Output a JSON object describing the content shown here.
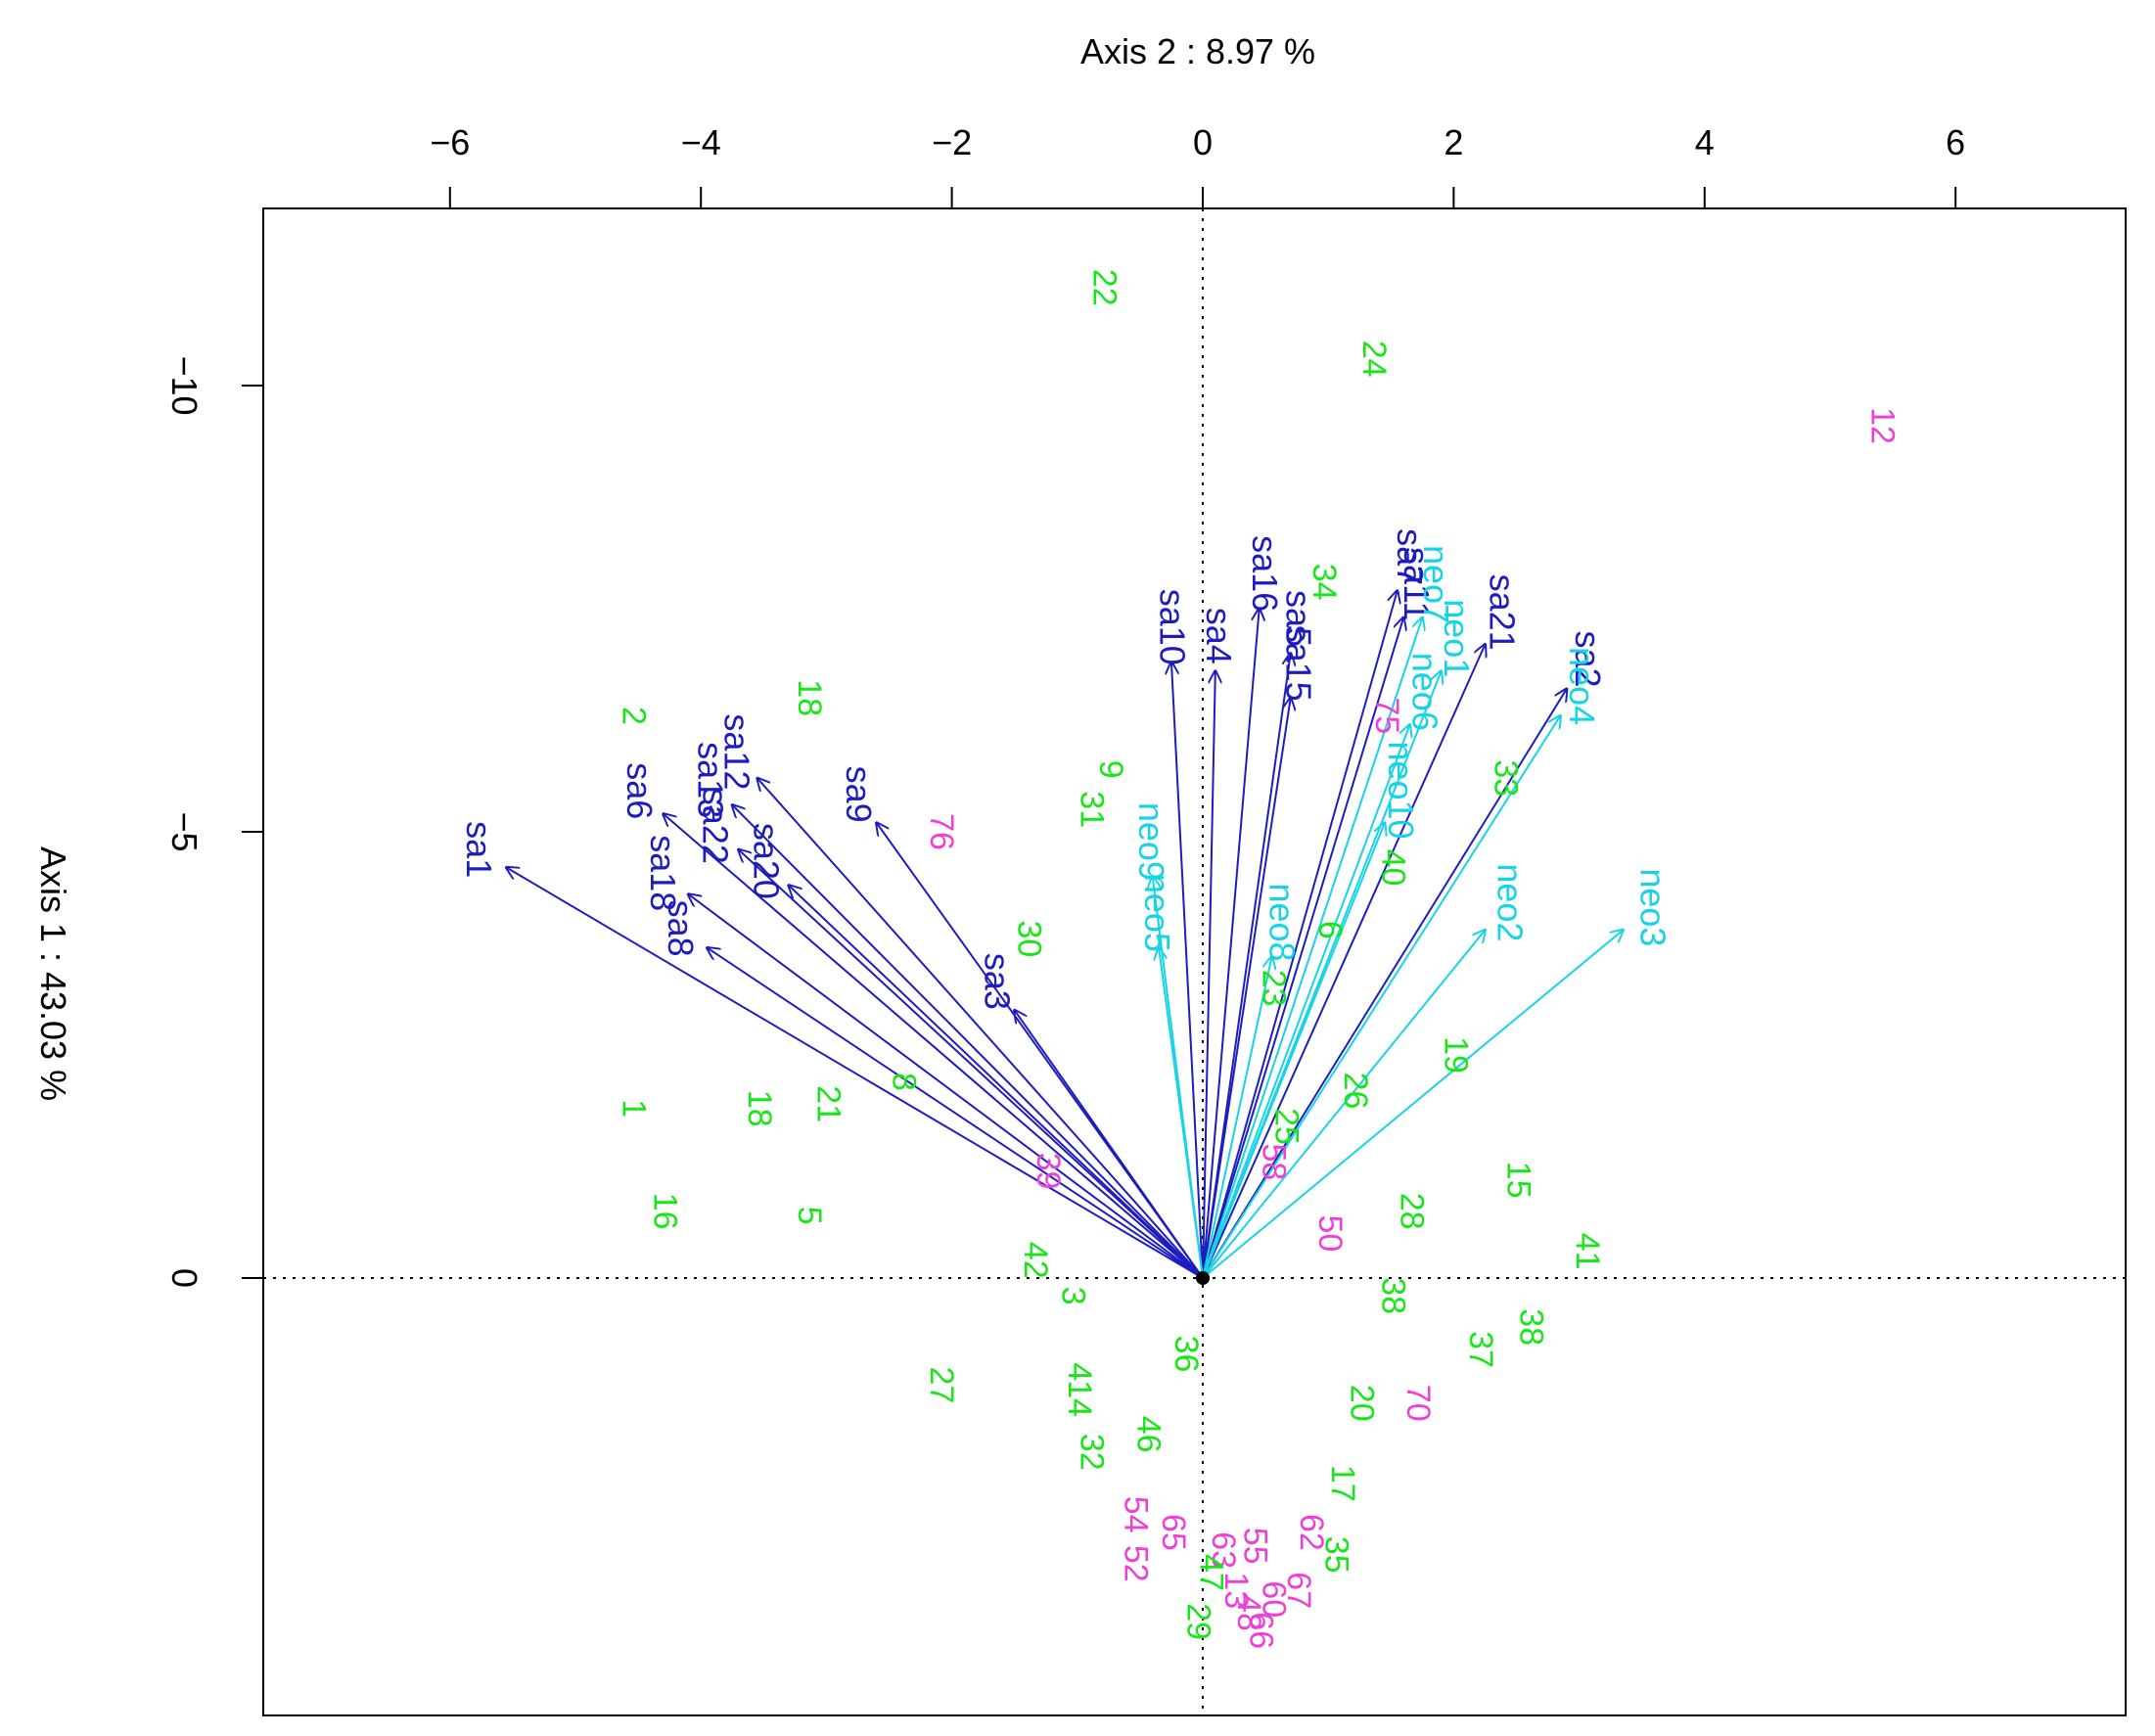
{
  "chart_data": {
    "type": "scatter",
    "title": "",
    "xlabel": "Axis 2 : 8.97 %",
    "ylabel": "Axis 1 : 43.03 %",
    "xlim": [
      -7.5,
      7.5
    ],
    "ylim": [
      -12,
      5
    ],
    "x_ticks": [
      {
        "value": -6,
        "label": "−6"
      },
      {
        "value": -4,
        "label": "−4"
      },
      {
        "value": -2,
        "label": "−2"
      },
      {
        "value": 0,
        "label": "0"
      },
      {
        "value": 2,
        "label": "2"
      },
      {
        "value": 4,
        "label": "4"
      },
      {
        "value": 6,
        "label": "6"
      }
    ],
    "y_ticks": [
      {
        "value": -10,
        "label": "−10"
      },
      {
        "value": -5,
        "label": "−5"
      },
      {
        "value": 0,
        "label": "0"
      }
    ],
    "colors": {
      "axis": "#000000",
      "sat_arrows": "#1d1dbf",
      "neo_arrows": "#16d3e6",
      "green_points": "#19e619",
      "magenta_points": "#ee3fd6"
    },
    "arrows": [
      {
        "label": "sa1",
        "group": "sat",
        "x": -5.55,
        "y": -4.6
      },
      {
        "label": "sa6",
        "group": "sat",
        "x": -4.3,
        "y": -5.2
      },
      {
        "label": "sa12",
        "group": "sat",
        "x": -3.55,
        "y": -5.6
      },
      {
        "label": "sa13",
        "group": "sat",
        "x": -3.75,
        "y": -5.3
      },
      {
        "label": "sa22",
        "group": "sat",
        "x": -3.7,
        "y": -4.8
      },
      {
        "label": "sa18",
        "group": "sat",
        "x": -4.1,
        "y": -4.3
      },
      {
        "label": "sa8",
        "group": "sat",
        "x": -3.95,
        "y": -3.7
      },
      {
        "label": "sa20",
        "group": "sat",
        "x": -3.3,
        "y": -4.4
      },
      {
        "label": "sa9",
        "group": "sat",
        "x": -2.6,
        "y": -5.1
      },
      {
        "label": "sa3",
        "group": "sat",
        "x": -1.5,
        "y": -3.0
      },
      {
        "label": "sa10",
        "group": "sat",
        "x": -0.25,
        "y": -6.9
      },
      {
        "label": "sa4",
        "group": "sat",
        "x": 0.1,
        "y": -6.8
      },
      {
        "label": "sa16",
        "group": "sat",
        "x": 0.45,
        "y": -7.5
      },
      {
        "label": "sa5",
        "group": "sat",
        "x": 0.7,
        "y": -7.0
      },
      {
        "label": "sa15",
        "group": "sat",
        "x": 0.7,
        "y": -6.5
      },
      {
        "label": "sa7",
        "group": "sat",
        "x": 1.55,
        "y": -7.7
      },
      {
        "label": "sa11",
        "group": "sat",
        "x": 1.6,
        "y": -7.4
      },
      {
        "label": "sa21",
        "group": "sat",
        "x": 2.25,
        "y": -7.1
      },
      {
        "label": "sa2",
        "group": "sat",
        "x": 2.9,
        "y": -6.6
      },
      {
        "label": "neo2",
        "group": "neo",
        "x": 2.25,
        "y": -3.9
      },
      {
        "label": "neo3",
        "group": "neo",
        "x": 3.35,
        "y": -3.9
      },
      {
        "label": "neo4",
        "group": "neo",
        "x": 2.85,
        "y": -6.3
      },
      {
        "label": "neo1",
        "group": "neo",
        "x": 1.9,
        "y": -6.8
      },
      {
        "label": "neo6",
        "group": "neo",
        "x": 1.65,
        "y": -6.2
      },
      {
        "label": "neo7",
        "group": "neo",
        "x": 1.75,
        "y": -7.4
      },
      {
        "label": "neo10",
        "group": "neo",
        "x": 1.45,
        "y": -5.1
      },
      {
        "label": "neo9",
        "group": "neo",
        "x": -0.4,
        "y": -4.5
      },
      {
        "label": "neo5",
        "group": "neo",
        "x": -0.35,
        "y": -3.7
      },
      {
        "label": "neo8",
        "group": "neo",
        "x": 0.55,
        "y": -3.6
      }
    ],
    "points": [
      {
        "label": "22",
        "group": "green",
        "x": -0.8,
        "y": -11.1
      },
      {
        "label": "24",
        "group": "green",
        "x": 1.35,
        "y": -10.3
      },
      {
        "label": "12",
        "group": "magenta",
        "x": 5.4,
        "y": -9.55
      },
      {
        "label": "34",
        "group": "green",
        "x": 0.95,
        "y": -7.8
      },
      {
        "label": "18",
        "group": "green",
        "x": -3.15,
        "y": -6.5
      },
      {
        "label": "2",
        "group": "green",
        "x": -4.55,
        "y": -6.3
      },
      {
        "label": "9",
        "group": "green",
        "x": -0.75,
        "y": -5.7
      },
      {
        "label": "31",
        "group": "green",
        "x": -0.9,
        "y": -5.25
      },
      {
        "label": "33",
        "group": "green",
        "x": 2.4,
        "y": -5.6
      },
      {
        "label": "75",
        "group": "magenta",
        "x": 1.45,
        "y": -6.3
      },
      {
        "label": "76",
        "group": "magenta",
        "x": -2.1,
        "y": -5.0
      },
      {
        "label": "40",
        "group": "green",
        "x": 1.5,
        "y": -4.6
      },
      {
        "label": "30",
        "group": "green",
        "x": -1.4,
        "y": -3.8
      },
      {
        "label": "6",
        "group": "green",
        "x": 1.0,
        "y": -3.9
      },
      {
        "label": "23",
        "group": "green",
        "x": 0.55,
        "y": -3.25
      },
      {
        "label": "8",
        "group": "green",
        "x": -2.4,
        "y": -2.2
      },
      {
        "label": "19",
        "group": "green",
        "x": 2.0,
        "y": -2.5
      },
      {
        "label": "26",
        "group": "green",
        "x": 1.2,
        "y": -2.1
      },
      {
        "label": "21",
        "group": "green",
        "x": -3.0,
        "y": -1.95
      },
      {
        "label": "18",
        "group": "green",
        "x": -3.55,
        "y": -1.9
      },
      {
        "label": "1",
        "group": "green",
        "x": -4.55,
        "y": -1.9
      },
      {
        "label": "25",
        "group": "green",
        "x": 0.65,
        "y": -1.7
      },
      {
        "label": "58",
        "group": "magenta",
        "x": 0.55,
        "y": -1.3
      },
      {
        "label": "39",
        "group": "magenta",
        "x": -1.25,
        "y": -1.2
      },
      {
        "label": "15",
        "group": "green",
        "x": 2.5,
        "y": -1.1
      },
      {
        "label": "16",
        "group": "green",
        "x": -4.3,
        "y": -0.75
      },
      {
        "label": "5",
        "group": "green",
        "x": -3.15,
        "y": -0.7
      },
      {
        "label": "28",
        "group": "green",
        "x": 1.65,
        "y": -0.75
      },
      {
        "label": "50",
        "group": "magenta",
        "x": 1.0,
        "y": -0.5
      },
      {
        "label": "41",
        "group": "green",
        "x": 3.05,
        "y": -0.3
      },
      {
        "label": "42",
        "group": "green",
        "x": -1.35,
        "y": -0.2
      },
      {
        "label": "3",
        "group": "green",
        "x": -1.05,
        "y": 0.2
      },
      {
        "label": "38",
        "group": "green",
        "x": 1.5,
        "y": 0.2
      },
      {
        "label": "38",
        "group": "green",
        "x": 2.6,
        "y": 0.55
      },
      {
        "label": "37",
        "group": "green",
        "x": 2.2,
        "y": 0.8
      },
      {
        "label": "36",
        "group": "green",
        "x": -0.15,
        "y": 0.85
      },
      {
        "label": "27",
        "group": "green",
        "x": -2.1,
        "y": 1.2
      },
      {
        "label": "4",
        "group": "green",
        "x": -1.0,
        "y": 1.05
      },
      {
        "label": "14",
        "group": "green",
        "x": -1.0,
        "y": 1.35
      },
      {
        "label": "20",
        "group": "green",
        "x": 1.25,
        "y": 1.4
      },
      {
        "label": "70",
        "group": "magenta",
        "x": 1.7,
        "y": 1.4
      },
      {
        "label": "46",
        "group": "green",
        "x": -0.45,
        "y": 1.75
      },
      {
        "label": "32",
        "group": "green",
        "x": -0.9,
        "y": 1.95
      },
      {
        "label": "17",
        "group": "green",
        "x": 1.1,
        "y": 2.3
      },
      {
        "label": "54",
        "group": "magenta",
        "x": -0.55,
        "y": 2.65
      },
      {
        "label": "65",
        "group": "magenta",
        "x": -0.25,
        "y": 2.85
      },
      {
        "label": "62",
        "group": "magenta",
        "x": 0.85,
        "y": 2.85
      },
      {
        "label": "35",
        "group": "green",
        "x": 1.05,
        "y": 3.1
      },
      {
        "label": "52",
        "group": "magenta",
        "x": -0.55,
        "y": 3.2
      },
      {
        "label": "55",
        "group": "magenta",
        "x": 0.4,
        "y": 3.0
      },
      {
        "label": "63",
        "group": "magenta",
        "x": 0.15,
        "y": 3.05
      },
      {
        "label": "47",
        "group": "green",
        "x": 0.05,
        "y": 3.3
      },
      {
        "label": "13",
        "group": "magenta",
        "x": 0.25,
        "y": 3.5
      },
      {
        "label": "67",
        "group": "magenta",
        "x": 0.75,
        "y": 3.5
      },
      {
        "label": "60",
        "group": "magenta",
        "x": 0.55,
        "y": 3.6
      },
      {
        "label": "48",
        "group": "magenta",
        "x": 0.35,
        "y": 3.75
      },
      {
        "label": "66",
        "group": "magenta",
        "x": 0.45,
        "y": 3.95
      },
      {
        "label": "29",
        "group": "green",
        "x": -0.05,
        "y": 3.85
      }
    ]
  }
}
